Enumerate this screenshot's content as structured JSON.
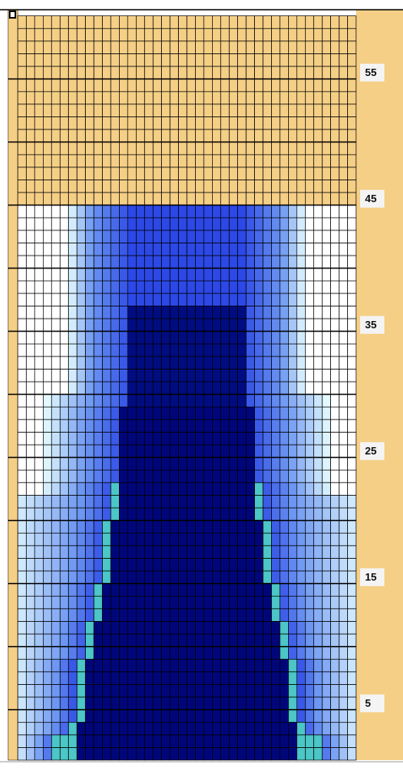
{
  "row_labels": [
    55,
    45,
    35,
    25,
    15,
    5
  ]
}
